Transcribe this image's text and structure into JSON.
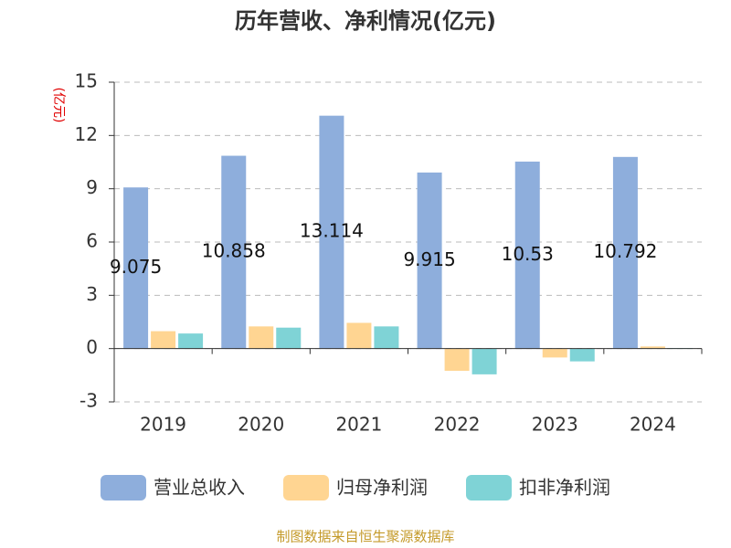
{
  "chart_data": {
    "type": "bar",
    "title": "历年营收、净利情况(亿元)",
    "y_label": "(亿元)",
    "categories": [
      "2019",
      "2020",
      "2021",
      "2022",
      "2023",
      "2024"
    ],
    "series": [
      {
        "name": "营业总收入",
        "color": "#8eaedc",
        "values": [
          9.075,
          10.858,
          13.114,
          9.915,
          10.53,
          10.792
        ],
        "show_labels": true
      },
      {
        "name": "归母净利润",
        "color": "#ffd592",
        "values": [
          0.98,
          1.25,
          1.45,
          -1.25,
          -0.5,
          0.12
        ]
      },
      {
        "name": "扣非净利润",
        "color": "#7fd3d6",
        "values": [
          0.85,
          1.18,
          1.25,
          -1.45,
          -0.72,
          0.03
        ]
      }
    ],
    "ylim": [
      -3,
      15
    ],
    "yticks": [
      -3,
      0,
      3,
      6,
      9,
      12,
      15
    ],
    "grid": true,
    "source": "制图数据来自恒生聚源数据库"
  }
}
